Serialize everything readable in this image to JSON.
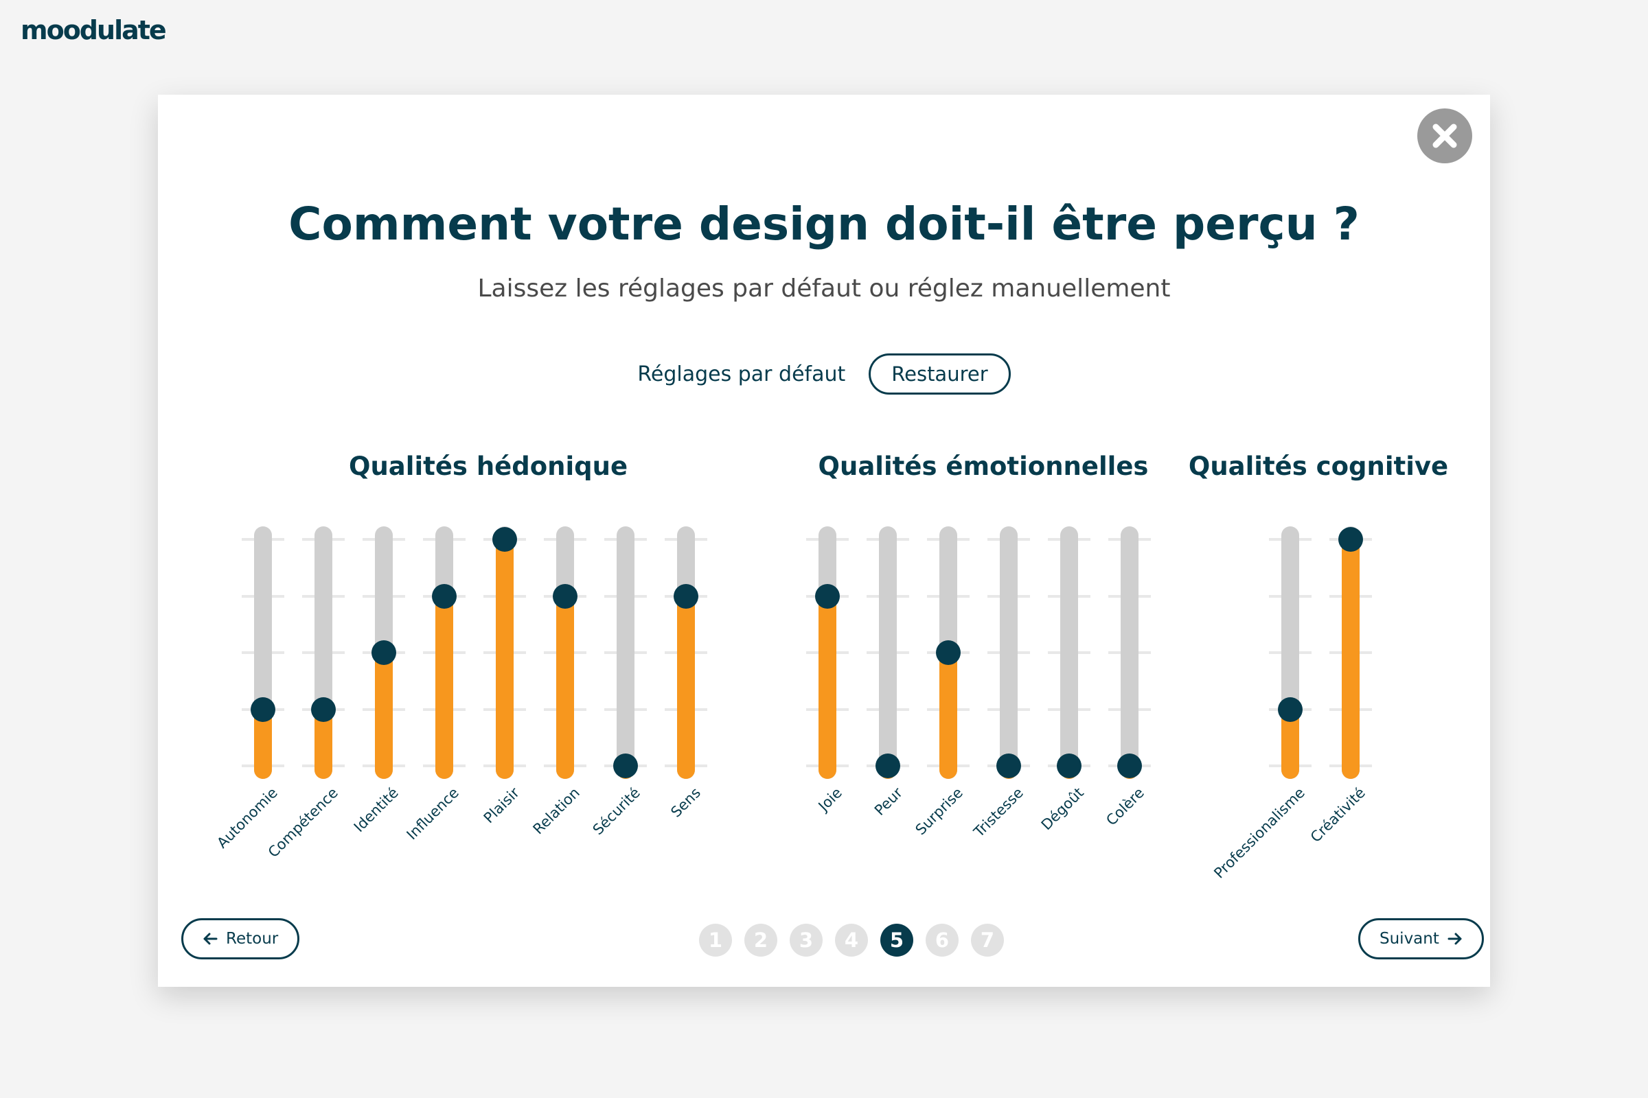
{
  "app": {
    "logo": "moodulate"
  },
  "modal": {
    "title": "Comment votre design doit-il être perçu ?",
    "subtitle": "Laissez les réglages par défaut ou réglez manuellement",
    "defaults_label": "Réglages par défaut",
    "restore_label": "Restaurer",
    "close_icon": "close-icon"
  },
  "colors": {
    "primary": "#073b4c",
    "accent": "#f7971e",
    "track": "#cfcfcf",
    "page_inactive": "#e2e2e2"
  },
  "scale": {
    "steps": 4,
    "note": "slider values on a 0–4 scale"
  },
  "groups": [
    {
      "title": "Qualités hédonique",
      "sliders": [
        {
          "label": "Autonomie",
          "value": 1
        },
        {
          "label": "Compétence",
          "value": 1
        },
        {
          "label": "Identité",
          "value": 2
        },
        {
          "label": "Influence",
          "value": 3
        },
        {
          "label": "Plaisir",
          "value": 4
        },
        {
          "label": "Relation",
          "value": 3
        },
        {
          "label": "Sécurité",
          "value": 0
        },
        {
          "label": "Sens",
          "value": 3
        }
      ]
    },
    {
      "title": "Qualités émotionnelles",
      "sliders": [
        {
          "label": "Joie",
          "value": 3
        },
        {
          "label": "Peur",
          "value": 0
        },
        {
          "label": "Surprise",
          "value": 2
        },
        {
          "label": "Tristesse",
          "value": 0
        },
        {
          "label": "Dégoût",
          "value": 0
        },
        {
          "label": "Colère",
          "value": 0
        }
      ]
    },
    {
      "title": "Qualités cognitive",
      "sliders": [
        {
          "label": "Professionalisme",
          "value": 1
        },
        {
          "label": "Créativité",
          "value": 4
        }
      ]
    }
  ],
  "navigation": {
    "back_label": "Retour",
    "next_label": "Suivant",
    "pages": [
      "1",
      "2",
      "3",
      "4",
      "5",
      "6",
      "7"
    ],
    "current_page": "5"
  }
}
